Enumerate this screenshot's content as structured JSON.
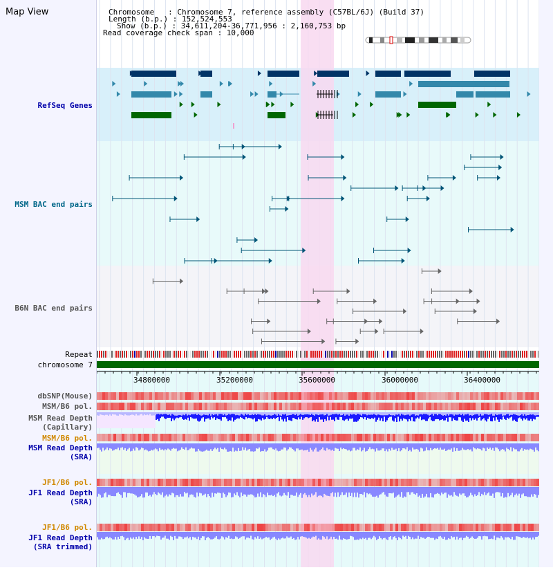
{
  "header": {
    "title": "Map View",
    "chromosome_line": "Chromosome   : Chromosome 7, reference assembly (C57BL/6J) (Build 37)",
    "length_line": "Length (b.p.) : 152,524,553",
    "show_line": "Show (b.p.) : 34,611,204-36,771,956 : 2,160,753 bp",
    "coverage_line": "Read coverage check span : 10,000"
  },
  "tracks": {
    "refseq": "RefSeq Genes",
    "msm_bac": "MSM BAC end pairs",
    "b6n_bac": "B6N BAC end pairs",
    "repeat": "Repeat",
    "chromosome": "chromosome 7",
    "dbsnp": "dbSNP(Mouse)",
    "msm_b6_pol_1": "MSM/B6 pol.",
    "msm_read_depth_cap_1": "MSM Read Depth",
    "msm_read_depth_cap_2": "(Capillary)",
    "msm_b6_pol_2": "MSM/B6 pol.",
    "msm_read_depth_sra_1": "MSM Read Depth",
    "msm_read_depth_sra_2": "(SRA)",
    "jf1_b6_pol_1": "JF1/B6 pol.",
    "jf1_read_depth_sra_1": "JF1 Read Depth",
    "jf1_read_depth_sra_2": "(SRA)",
    "jf1_b6_pol_2": "JF1/B6 pol.",
    "jf1_read_depth_trim_1": "JF1 Read Depth",
    "jf1_read_depth_trim_2": "(SRA trimmed)"
  },
  "axis": {
    "ticks": [
      "34800000",
      "35200000",
      "35600000",
      "36000000",
      "36400000"
    ]
  },
  "colors": {
    "refseq_bg": "#d8f0fa",
    "bac_bg": "#e8fafa",
    "b6n_bg": "#f4f4f8",
    "highlight": "#f8d8f0",
    "refseq_dark": "#003366",
    "refseq_mid": "#3388aa",
    "refseq_green": "#006600",
    "bac_teal": "#005577",
    "bac_gray": "#666666",
    "chromosome_bar": "#006600",
    "snp_red": "#ee4444",
    "depth_blue": "#1a1aff",
    "depth_lavender": "#8888ff"
  }
}
